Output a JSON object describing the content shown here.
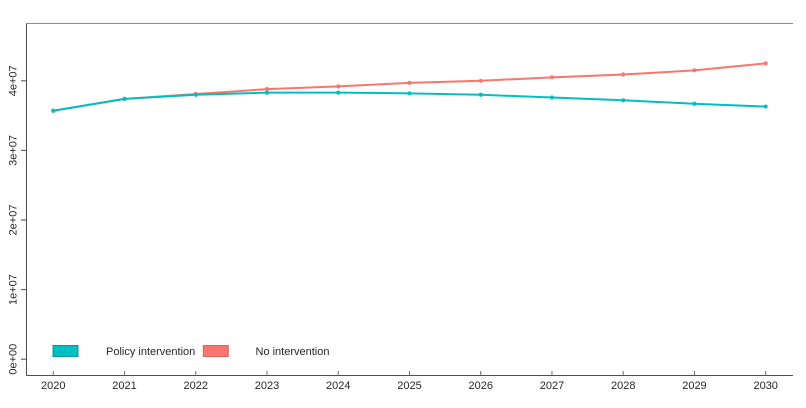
{
  "chart_data": {
    "type": "line",
    "title": "",
    "xlabel": "",
    "ylabel": "",
    "x": [
      2020,
      2021,
      2022,
      2023,
      2024,
      2025,
      2026,
      2027,
      2028,
      2029,
      2030
    ],
    "x_tick_labels": [
      "2020",
      "2021",
      "2022",
      "2023",
      "2024",
      "2025",
      "2026",
      "2027",
      "2028",
      "2029",
      "2030"
    ],
    "y_ticks": [
      {
        "value": 0,
        "label": "0e+00"
      },
      {
        "value": 10000000,
        "label": "1e+07"
      },
      {
        "value": 20000000,
        "label": "2e+07"
      },
      {
        "value": 30000000,
        "label": "3e+07"
      },
      {
        "value": 40000000,
        "label": "4e+07"
      }
    ],
    "xlim": [
      2020,
      2030
    ],
    "ylim": [
      0,
      43000000
    ],
    "grid": false,
    "legend_position": "inside-bottom-left",
    "marker": "point",
    "series": [
      {
        "name": "Policy intervention",
        "color": "#00BFC4",
        "swatch_border": "#00989D",
        "values": [
          35700000,
          37400000,
          38000000,
          38300000,
          38300000,
          38200000,
          38000000,
          37600000,
          37200000,
          36700000,
          36300000
        ]
      },
      {
        "name": "No intervention",
        "color": "#F8766D",
        "swatch_border": "#D9655D",
        "values": [
          35700000,
          37400000,
          38100000,
          38800000,
          39200000,
          39700000,
          40000000,
          40500000,
          40900000,
          41500000,
          42500000
        ]
      }
    ],
    "colors": {
      "frame": "#8c8c8c",
      "axis": "#4d4d4d",
      "tick": "#6e6e6e",
      "text": "#262626",
      "background": "#ffffff"
    }
  }
}
